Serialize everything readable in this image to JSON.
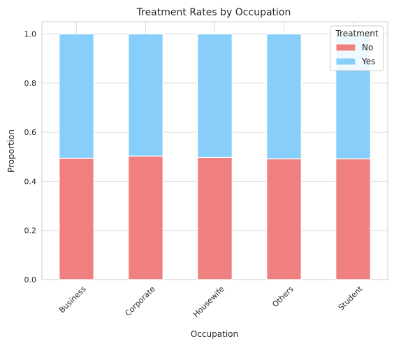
{
  "chart_data": {
    "type": "bar",
    "stacked": true,
    "title": "Treatment Rates by Occupation",
    "xlabel": "Occupation",
    "ylabel": "Proportion",
    "ylim": [
      0,
      1.05
    ],
    "yticks": [
      "0.0",
      "0.2",
      "0.4",
      "0.6",
      "0.8",
      "1.0"
    ],
    "categories": [
      "Business",
      "Corporate",
      "Housewife",
      "Others",
      "Student"
    ],
    "series": [
      {
        "name": "No",
        "color": "#f08080",
        "values": [
          0.494,
          0.503,
          0.497,
          0.492,
          0.492
        ]
      },
      {
        "name": "Yes",
        "color": "#87cefa",
        "values": [
          0.506,
          0.497,
          0.503,
          0.508,
          0.508
        ]
      }
    ],
    "legend": {
      "title": "Treatment",
      "placement": "top-right"
    },
    "grid": true
  }
}
